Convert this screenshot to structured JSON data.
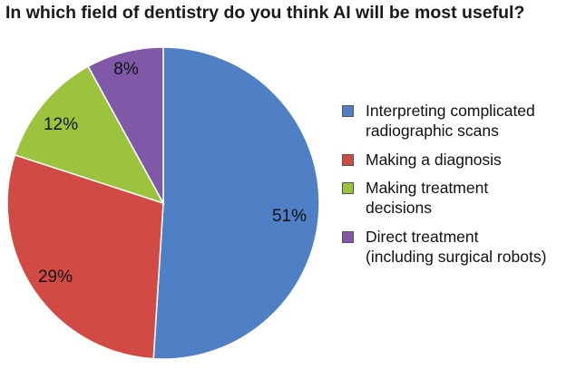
{
  "chart_data": {
    "type": "pie",
    "title": "In which field of dentistry do you think AI will be most useful?",
    "slices": [
      {
        "name": "Interpreting complicated radiographic scans",
        "label_lines": [
          "Interpreting complicated",
          "radiographic scans"
        ],
        "value": 51,
        "label": "51%",
        "color": "#4f7fc4"
      },
      {
        "name": "Making a diagnosis",
        "label_lines": [
          "Making a diagnosis"
        ],
        "value": 29,
        "label": "29%",
        "color": "#d14b44"
      },
      {
        "name": "Making treatment decisions",
        "label_lines": [
          "Making treatment",
          "decisions"
        ],
        "value": 12,
        "label": "12%",
        "color": "#9cc33e"
      },
      {
        "name": "Direct treatment (including surgical robots)",
        "label_lines": [
          "Direct treatment",
          "(including surgical robots)"
        ],
        "value": 8,
        "label": "8%",
        "color": "#8058a8"
      }
    ],
    "start_angle": "top",
    "direction": "clockwise",
    "legend_position": "right"
  }
}
